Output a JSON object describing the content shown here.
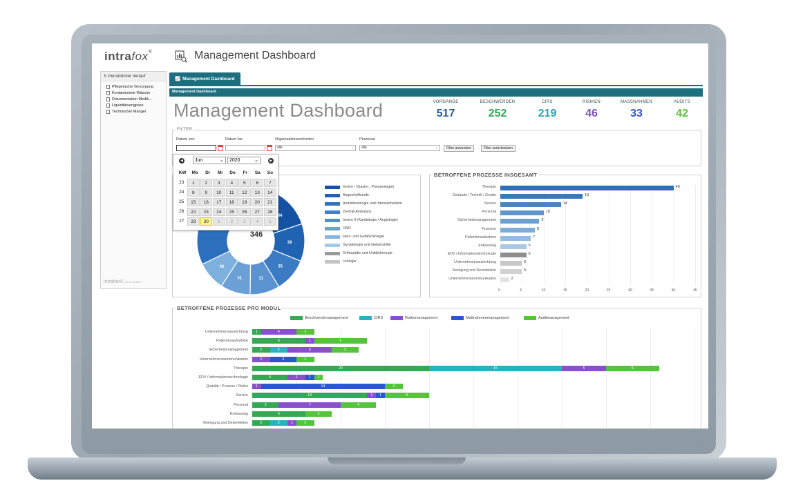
{
  "app": {
    "brand_main": "intra",
    "brand_italic": "fox",
    "brand_reg": "®",
    "header_title": "Management Dashboard",
    "footer_brand": "intrafox®",
    "footer_version": "5.4.0 / 2020.2"
  },
  "sidebar": {
    "title": "Persönlicher Verlauf",
    "items": [
      "Pflegerische Versorgung",
      "Kontaminierte Wäsche",
      "Dokumentation Medik...",
      "Liquiditätsengpass",
      "Technischer Mangel"
    ]
  },
  "tabs": {
    "active": "Management Dashboard"
  },
  "panel_title": "Management Dashboard",
  "page_title": "Management Dashboard",
  "kpis": [
    {
      "label": "VORGÄNGE",
      "value": "517",
      "color": "#1f5fa0"
    },
    {
      "label": "BESCHWERDEN",
      "value": "252",
      "color": "#2fa84f"
    },
    {
      "label": "CIRS",
      "value": "219",
      "color": "#2aa3b8"
    },
    {
      "label": "RISIKEN",
      "value": "46",
      "color": "#7b4fbf"
    },
    {
      "label": "MASSNAHMEN",
      "value": "33",
      "color": "#2d59c7"
    },
    {
      "label": "AUDITS",
      "value": "42",
      "color": "#55c23a"
    }
  ],
  "filter": {
    "legend": "FILTER",
    "date_from_label": "Datum von",
    "date_to_label": "Datum bis",
    "org_label": "Organisationseinheiten",
    "process_label": "Prozesse",
    "org_value": "alle",
    "process_value": "alle",
    "apply_button": "Filter anwenden",
    "reset_button": "Filter zurücksetzen"
  },
  "calendar": {
    "month": "Jun",
    "year": "2020",
    "headers": [
      "KW",
      "Mo",
      "Di",
      "Mi",
      "Do",
      "Fr",
      "Sa",
      "So"
    ],
    "weeks": [
      {
        "kw": "23",
        "days": [
          "1",
          "2",
          "3",
          "4",
          "5",
          "6",
          "7"
        ]
      },
      {
        "kw": "24",
        "days": [
          "8",
          "9",
          "10",
          "11",
          "12",
          "13",
          "14"
        ]
      },
      {
        "kw": "25",
        "days": [
          "15",
          "16",
          "17",
          "18",
          "19",
          "20",
          "21"
        ]
      },
      {
        "kw": "26",
        "days": [
          "22",
          "23",
          "24",
          "25",
          "26",
          "27",
          "28"
        ]
      },
      {
        "kw": "27",
        "days": [
          "29",
          "30",
          "1",
          "2",
          "3",
          "4",
          "5"
        ]
      }
    ]
  },
  "donut": {
    "total": "346",
    "legend": [
      {
        "name": "Innere I (Gastro., Pneumologie)",
        "color": "#1552a3"
      },
      {
        "name": "Augenheilkunde",
        "color": "#1d63b0"
      },
      {
        "name": "Anästhesiologie und Intensivmedizin",
        "color": "#2d73bd"
      },
      {
        "name": "Zentral-Ambulanz",
        "color": "#3d82c6"
      },
      {
        "name": "Innere II (Kardiologie / Angiologie)",
        "color": "#4f8fcd"
      },
      {
        "name": "HNO",
        "color": "#6aa2d6"
      },
      {
        "name": "Herz- und Gefäßchirurgie",
        "color": "#86b5df"
      },
      {
        "name": "Gynäkologie und Geburtshilfe",
        "color": "#a5c8e8"
      },
      {
        "name": "Orthopädie und Unfallchirurgie",
        "color": "#9a9a9a"
      },
      {
        "name": "Urologie",
        "color": "#c4c4c4"
      }
    ]
  },
  "chart_data": [
    {
      "type": "pie",
      "title": "",
      "center_label": "346",
      "slices": [
        {
          "label": "",
          "value": 44,
          "color": "#1552a3"
        },
        {
          "label": "",
          "value": 39,
          "color": "#1f63b2"
        },
        {
          "label": "",
          "value": 35,
          "color": "#3b7bc3"
        },
        {
          "label": "",
          "value": 31,
          "color": "#5a93cf"
        },
        {
          "label": "",
          "value": 31,
          "color": "#6aa0d6"
        },
        {
          "label": "",
          "value": 30,
          "color": "#7eb0dd"
        },
        {
          "label": "",
          "value": 136,
          "color": "#2c6fbd"
        }
      ]
    },
    {
      "type": "bar",
      "orientation": "horizontal",
      "title": "BETROFFENE PROZESSE INSGESAMT",
      "categories": [
        "Therapie",
        "Gebäude / Technik / Geräte",
        "Service",
        "Personal",
        "Sicherheitsmanagement",
        "Finanzen",
        "Patientenaufnahme",
        "Entlassung",
        "EDV / Informationstechnologie",
        "Unternehmensausrichtung",
        "Reinigung und Desinfektion",
        "Unternehmenskommunikation"
      ],
      "values": [
        40,
        19,
        14,
        10,
        9,
        8,
        7,
        6,
        6,
        5,
        5,
        2
      ],
      "colors": [
        "#2f6fb6",
        "#3a78bc",
        "#4b86c4",
        "#5f94cc",
        "#6fa0d3",
        "#7fabd8",
        "#94bbe0",
        "#a9c8e6",
        "#8f8f8f",
        "#c8c8c8",
        "#d2d2d2",
        "#e2e2e2"
      ],
      "xlim": [
        0,
        45
      ],
      "xticks": [
        "0",
        "5",
        "10",
        "15",
        "20",
        "25",
        "30",
        "35",
        "40",
        "45"
      ]
    },
    {
      "type": "bar",
      "orientation": "horizontal",
      "stacked": true,
      "title": "BETROFFENE PROZESSE PRO MODUL",
      "categories": [
        "Unternehmensausrichtung",
        "Patientenaufnahme",
        "Sicherheitsmanagement",
        "Unternehmenskommunikation",
        "Therapie",
        "EDV / Informationstechnologie",
        "Qualität / Prozess / Risiko",
        "Service",
        "Personal",
        "Entlassung",
        "Reinigung und Desinfektion"
      ],
      "series": [
        {
          "name": "Beschwerdemanagement",
          "color": "#34a853",
          "values": [
            1,
            6,
            2,
            0,
            20,
            4,
            0,
            13,
            3,
            6,
            2
          ]
        },
        {
          "name": "CIRS",
          "color": "#2ab0c0",
          "values": [
            0,
            0,
            2,
            0,
            15,
            0,
            0,
            0,
            0,
            0,
            2
          ]
        },
        {
          "name": "Risikomanagement",
          "color": "#8a4fd0",
          "values": [
            4,
            1,
            5,
            2,
            5,
            2,
            1,
            1,
            7,
            0,
            1
          ]
        },
        {
          "name": "Maßnahmenmanagement",
          "color": "#2a56d0",
          "values": [
            0,
            0,
            0,
            3,
            0,
            1,
            14,
            1,
            0,
            0,
            0
          ]
        },
        {
          "name": "Auditmanagement",
          "color": "#54c43a",
          "values": [
            2,
            6,
            3,
            2,
            6,
            1,
            2,
            5,
            4,
            3,
            2
          ]
        }
      ],
      "xlim": [
        0,
        50
      ]
    }
  ]
}
